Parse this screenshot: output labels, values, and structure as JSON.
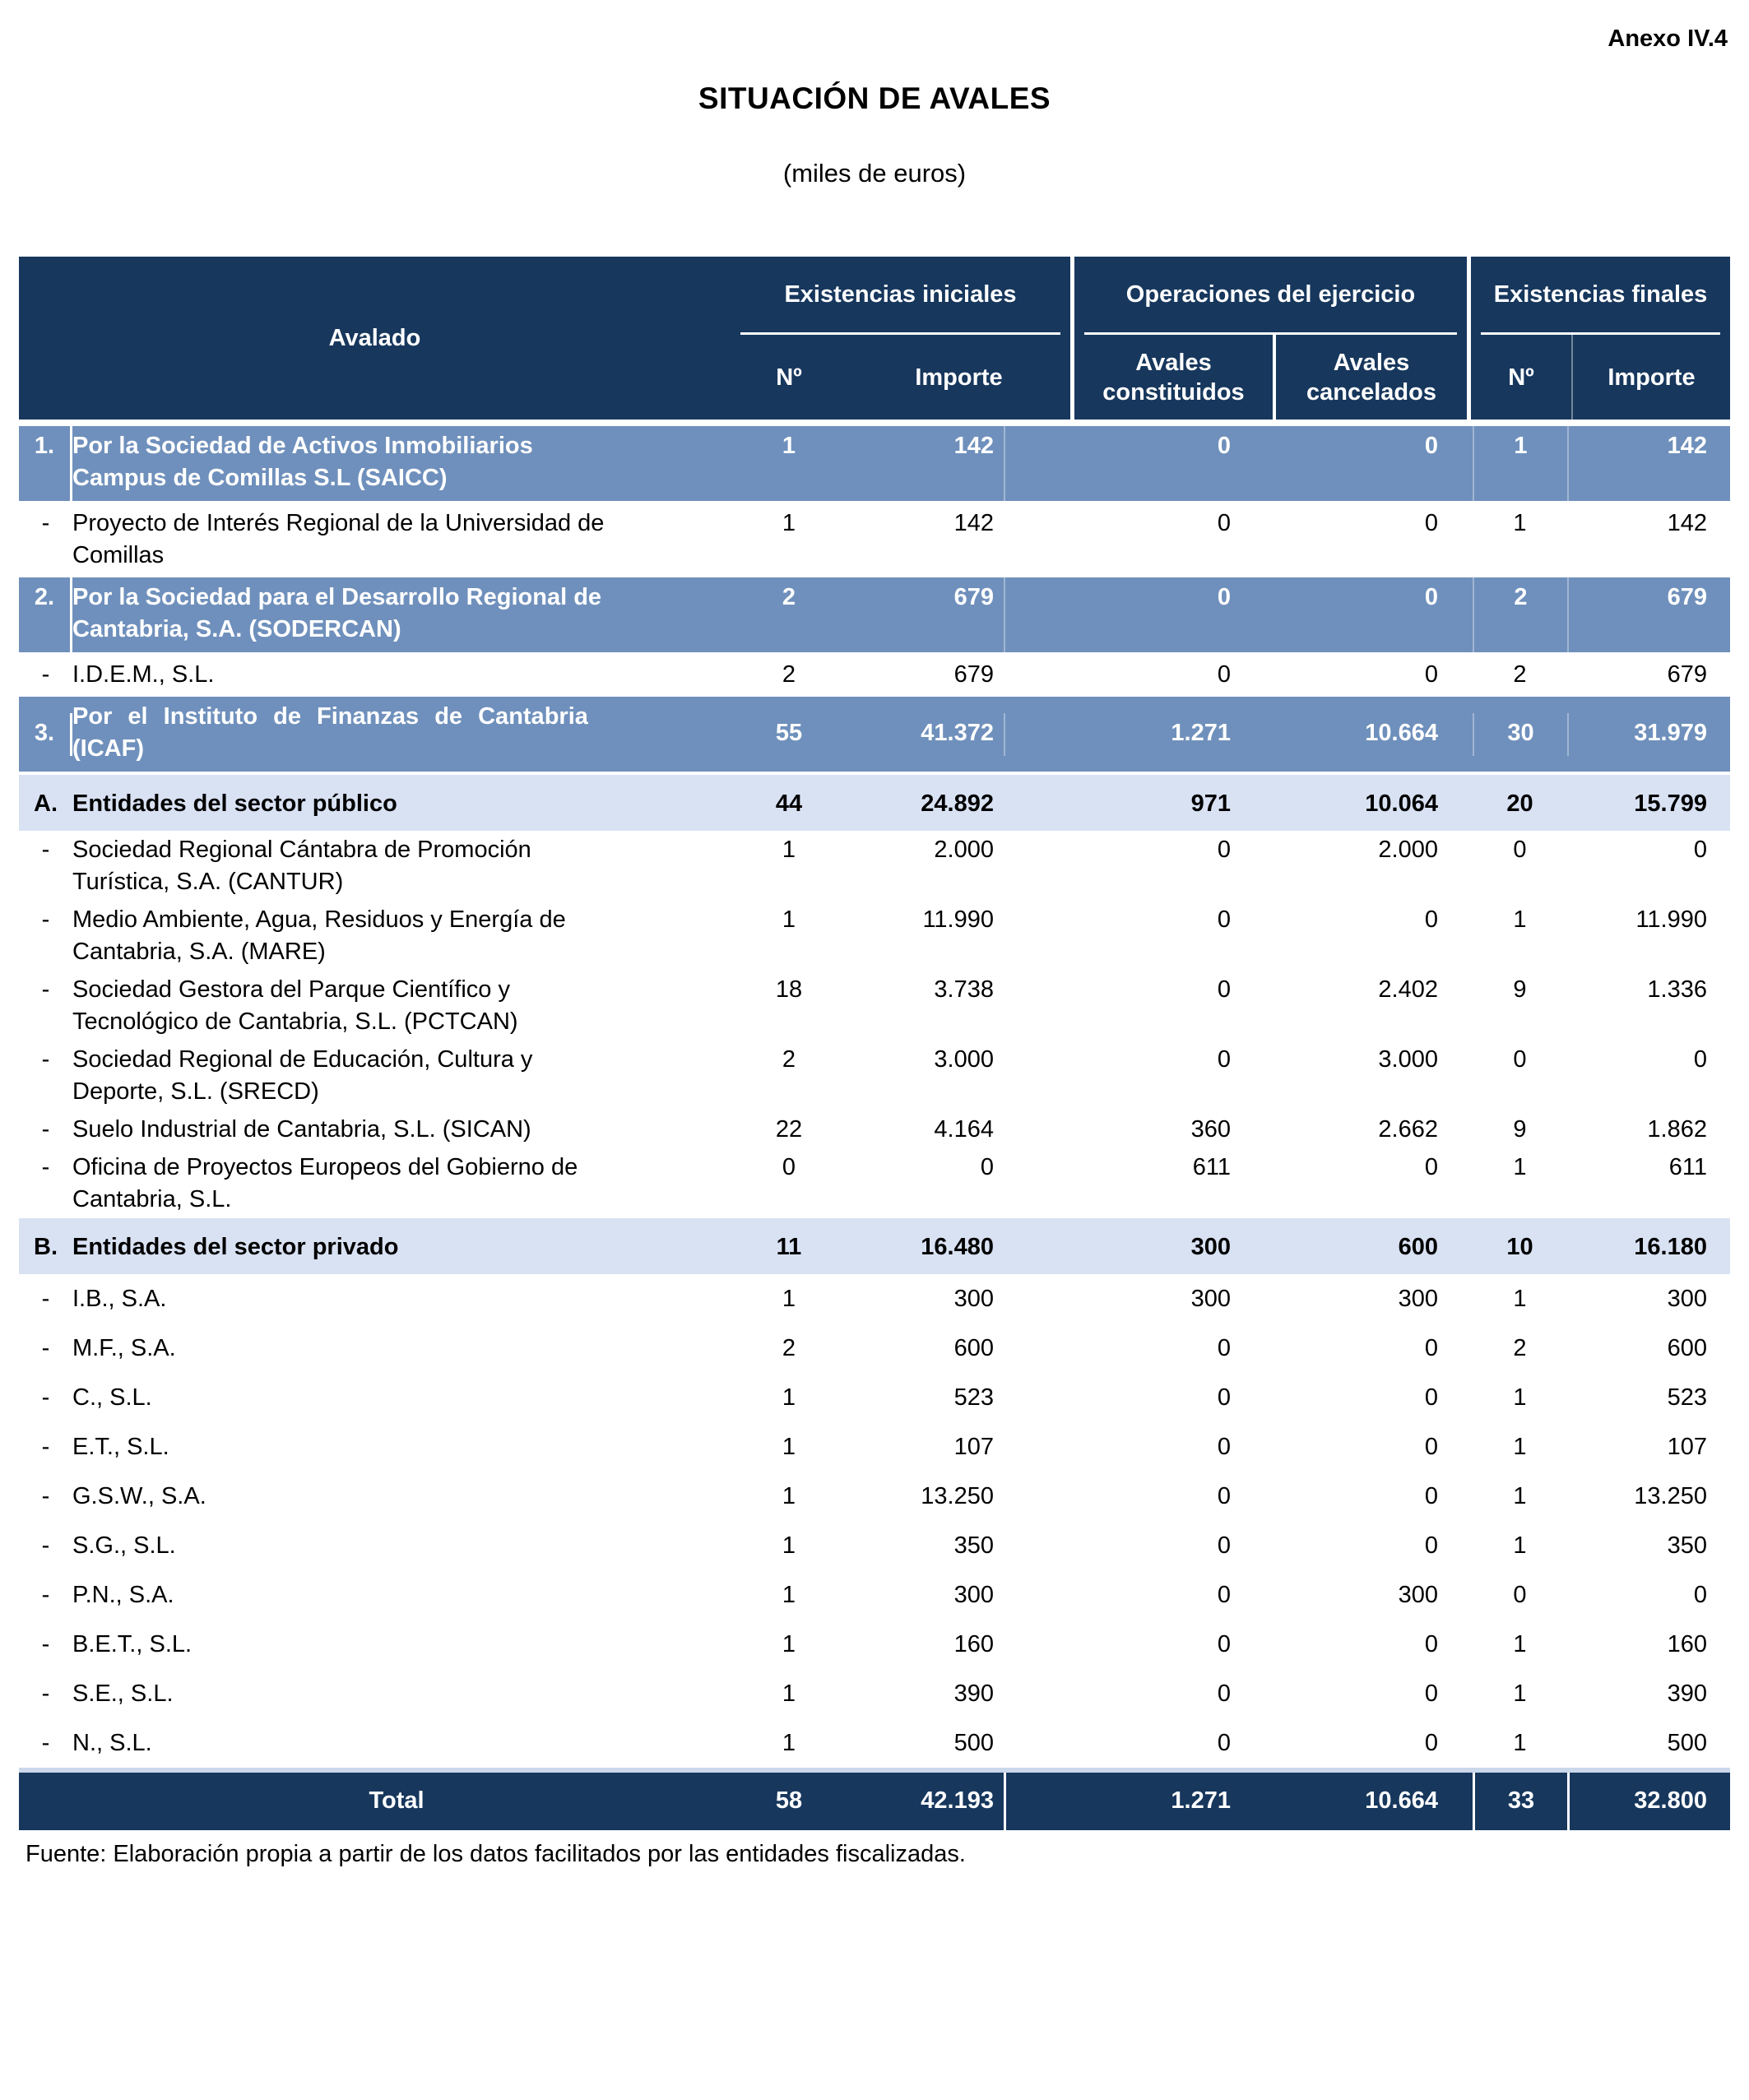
{
  "page": {
    "annex": "Anexo IV.4",
    "title": "SITUACIÓN DE AVALES",
    "subtitle": "(miles de euros)",
    "source": "Fuente: Elaboración propia a partir de los datos facilitados por las entidades fiscalizadas."
  },
  "colors": {
    "header_navy": "#17375D",
    "lead_blue": "#6F90BC",
    "section_light_blue": "#D9E2F3",
    "total_top_strip": "#CBD7EA"
  },
  "table": {
    "header": {
      "avalado": "Avalado",
      "groups": [
        {
          "label": "Existencias iniciales",
          "cols": [
            "Nº",
            "Importe"
          ]
        },
        {
          "label": "Operaciones del ejercicio",
          "cols": [
            "Avales constituidos",
            "Avales cancelados"
          ]
        },
        {
          "label": "Existencias finales",
          "cols": [
            "Nº",
            "Importe"
          ]
        }
      ]
    },
    "rows": [
      {
        "type": "lead",
        "marker": "1.",
        "name": "Por la Sociedad de Activos Inmobiliarios\nCampus de Comillas S.L (SAICC)",
        "values": [
          "1",
          "142",
          "0",
          "0",
          "1",
          "142"
        ]
      },
      {
        "type": "detail",
        "marker": "-",
        "name": "Proyecto de Interés Regional de la Universidad de\nComillas",
        "values": [
          "1",
          "142",
          "0",
          "0",
          "1",
          "142"
        ]
      },
      {
        "type": "lead",
        "marker": "2.",
        "name": "Por la Sociedad para el Desarrollo Regional de\nCantabria, S.A. (SODERCAN)",
        "values": [
          "2",
          "679",
          "0",
          "0",
          "2",
          "679"
        ]
      },
      {
        "type": "detail",
        "marker": "-",
        "name": "I.D.E.M., S.L.",
        "values": [
          "2",
          "679",
          "0",
          "0",
          "2",
          "679"
        ]
      },
      {
        "type": "lead-middle",
        "marker": "3.",
        "name": "Por el Instituto de Finanzas de Cantabria\n(ICAF)",
        "values": [
          "55",
          "41.372",
          "1.271",
          "10.664",
          "30",
          "31.979"
        ]
      },
      {
        "type": "section",
        "marker": "A.",
        "name": "Entidades del sector público",
        "values": [
          "44",
          "24.892",
          "971",
          "10.064",
          "20",
          "15.799"
        ]
      },
      {
        "type": "detail",
        "marker": "-",
        "name": "Sociedad Regional Cántabra de Promoción\nTurística, S.A. (CANTUR)",
        "values": [
          "1",
          "2.000",
          "0",
          "2.000",
          "0",
          "0"
        ]
      },
      {
        "type": "detail",
        "marker": "-",
        "name": "Medio Ambiente, Agua, Residuos y Energía de\nCantabria, S.A. (MARE)",
        "values": [
          "1",
          "11.990",
          "0",
          "0",
          "1",
          "11.990"
        ]
      },
      {
        "type": "detail",
        "marker": "-",
        "name": "Sociedad Gestora del Parque Científico y\nTecnológico de Cantabria, S.L. (PCTCAN)",
        "values": [
          "18",
          "3.738",
          "0",
          "2.402",
          "9",
          "1.336"
        ]
      },
      {
        "type": "detail",
        "marker": "-",
        "name": "Sociedad Regional de Educación, Cultura y\nDeporte, S.L. (SRECD)",
        "values": [
          "2",
          "3.000",
          "0",
          "3.000",
          "0",
          "0"
        ]
      },
      {
        "type": "detail",
        "marker": "-",
        "name": "Suelo Industrial de Cantabria, S.L. (SICAN)",
        "values": [
          "22",
          "4.164",
          "360",
          "2.662",
          "9",
          "1.862"
        ]
      },
      {
        "type": "detail",
        "marker": "-",
        "name": "Oficina de Proyectos Europeos del Gobierno de\nCantabria, S.L.",
        "values": [
          "0",
          "0",
          "611",
          "0",
          "1",
          "611"
        ]
      },
      {
        "type": "section",
        "marker": "B.",
        "name": "Entidades del sector privado",
        "values": [
          "11",
          "16.480",
          "300",
          "600",
          "10",
          "16.180"
        ]
      },
      {
        "type": "detail roomy",
        "marker": "-",
        "name": "I.B., S.A.",
        "values": [
          "1",
          "300",
          "300",
          "300",
          "1",
          "300"
        ]
      },
      {
        "type": "detail roomy",
        "marker": "-",
        "name": "M.F., S.A.",
        "values": [
          "2",
          "600",
          "0",
          "0",
          "2",
          "600"
        ]
      },
      {
        "type": "detail roomy",
        "marker": "-",
        "name": "C., S.L.",
        "values": [
          "1",
          "523",
          "0",
          "0",
          "1",
          "523"
        ]
      },
      {
        "type": "detail roomy",
        "marker": "-",
        "name": "E.T., S.L.",
        "values": [
          "1",
          "107",
          "0",
          "0",
          "1",
          "107"
        ]
      },
      {
        "type": "detail roomy",
        "marker": "-",
        "name": "G.S.W., S.A.",
        "values": [
          "1",
          "13.250",
          "0",
          "0",
          "1",
          "13.250"
        ]
      },
      {
        "type": "detail roomy",
        "marker": "-",
        "name": "S.G., S.L.",
        "values": [
          "1",
          "350",
          "0",
          "0",
          "1",
          "350"
        ]
      },
      {
        "type": "detail roomy",
        "marker": "-",
        "name": "P.N., S.A.",
        "values": [
          "1",
          "300",
          "0",
          "300",
          "0",
          "0"
        ]
      },
      {
        "type": "detail roomy",
        "marker": "-",
        "name": "B.E.T., S.L.",
        "values": [
          "1",
          "160",
          "0",
          "0",
          "1",
          "160"
        ]
      },
      {
        "type": "detail roomy",
        "marker": "-",
        "name": "S.E., S.L.",
        "values": [
          "1",
          "390",
          "0",
          "0",
          "1",
          "390"
        ]
      },
      {
        "type": "detail roomy",
        "marker": "-",
        "name": "N., S.L.",
        "values": [
          "1",
          "500",
          "0",
          "0",
          "1",
          "500"
        ]
      },
      {
        "type": "total",
        "marker": "",
        "name": "Total",
        "values": [
          "58",
          "42.193",
          "1.271",
          "10.664",
          "33",
          "32.800"
        ]
      }
    ]
  }
}
